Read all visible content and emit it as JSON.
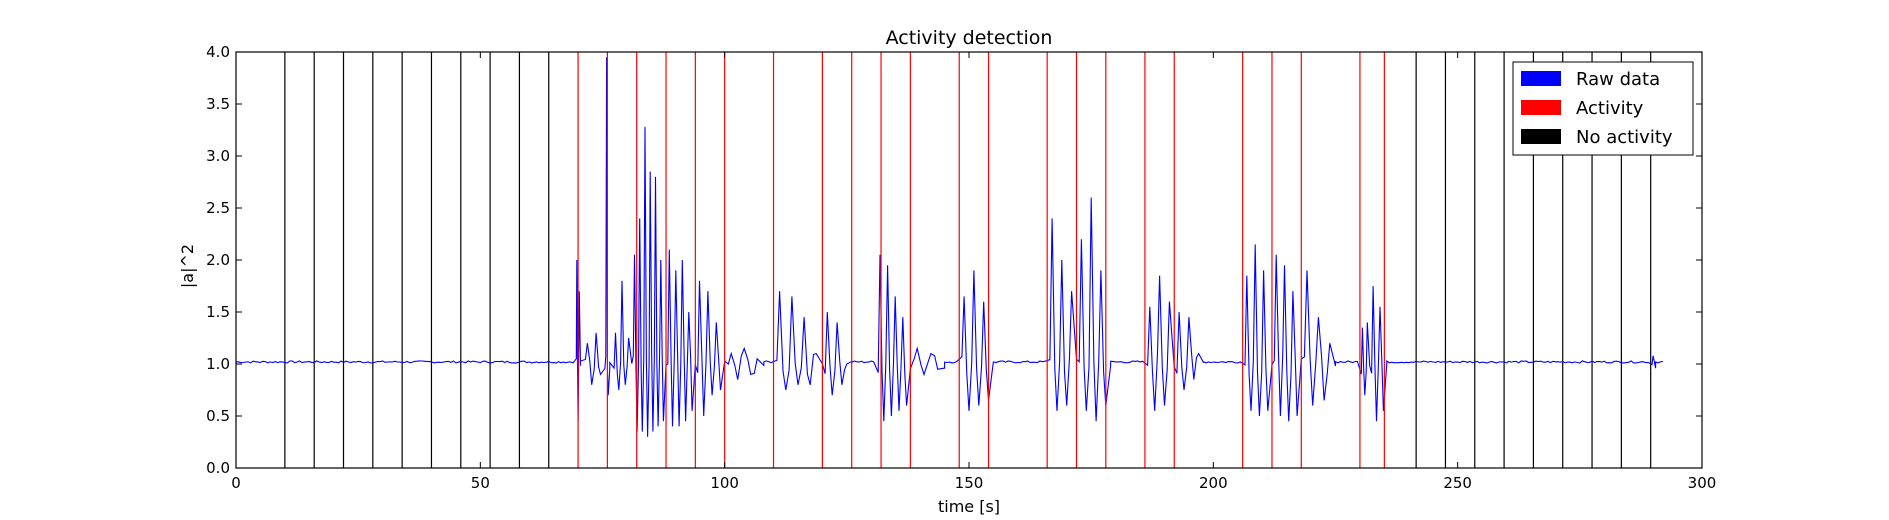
{
  "chart_data": {
    "type": "line",
    "title": "Activity detection",
    "xlabel": "time [s]",
    "ylabel": "|a|^2",
    "xlim": [
      0,
      300
    ],
    "ylim": [
      0.0,
      4.0
    ],
    "xticks": [
      0,
      50,
      100,
      150,
      200,
      250,
      300
    ],
    "xtick_labels": [
      "0",
      "50",
      "100",
      "150",
      "200",
      "250",
      "300"
    ],
    "yticks": [
      0.0,
      0.5,
      1.0,
      1.5,
      2.0,
      2.5,
      3.0,
      3.5,
      4.0
    ],
    "ytick_labels": [
      "0.0",
      "0.5",
      "1.0",
      "1.5",
      "2.0",
      "2.5",
      "3.0",
      "3.5",
      "4.0"
    ],
    "grid": false,
    "legend_position": "top-right",
    "legend": [
      {
        "label": "Raw data",
        "color": "#0000ff"
      },
      {
        "label": "Activity",
        "color": "#ff0000"
      },
      {
        "label": "No activity",
        "color": "#000000"
      }
    ],
    "raw_data": {
      "name": "Raw data",
      "color": "#0000ff",
      "baseline": 1.02,
      "t_end": 292,
      "bursts": [
        {
          "t": [
            69.5,
            70.5
          ],
          "peaks": [
            2.0,
            0.45,
            1.7
          ]
        },
        {
          "t": [
            71,
            75.5
          ],
          "peaks": [
            1.2,
            0.8,
            1.3,
            0.9
          ]
        },
        {
          "t": [
            75.5,
            76.5
          ],
          "peaks": [
            3.95,
            0.7
          ]
        },
        {
          "t": [
            77,
            81
          ],
          "peaks": [
            1.3,
            0.75,
            1.8,
            0.8,
            1.25
          ]
        },
        {
          "t": [
            81,
            88
          ],
          "peaks": [
            2.05,
            0.35,
            2.4,
            0.35,
            3.28,
            0.3,
            2.85,
            0.35,
            2.8,
            0.4,
            2.0,
            0.45
          ]
        },
        {
          "t": [
            88,
            94
          ],
          "peaks": [
            2.1,
            0.4,
            1.9,
            0.4,
            2.0,
            0.45,
            1.5,
            0.55
          ]
        },
        {
          "t": [
            94,
            100
          ],
          "peaks": [
            1.8,
            0.5,
            1.7,
            0.7,
            1.4,
            0.75
          ]
        },
        {
          "t": [
            100,
            108
          ],
          "peaks": [
            1.1,
            0.85,
            1.15,
            0.9,
            1.05
          ]
        },
        {
          "t": [
            110,
            120
          ],
          "peaks": [
            1.7,
            0.75,
            1.65,
            0.8,
            1.45,
            0.8,
            1.1
          ]
        },
        {
          "t": [
            120,
            126
          ],
          "peaks": [
            1.5,
            0.7,
            1.4,
            0.8,
            1.0
          ]
        },
        {
          "t": [
            131,
            138
          ],
          "peaks": [
            2.05,
            0.45,
            1.95,
            0.5,
            1.65,
            0.55,
            1.45,
            0.6
          ]
        },
        {
          "t": [
            138,
            145
          ],
          "peaks": [
            1.15,
            0.9,
            1.1,
            0.95
          ]
        },
        {
          "t": [
            148,
            155
          ],
          "peaks": [
            1.65,
            0.55,
            1.9,
            0.6,
            1.6,
            0.65
          ]
        },
        {
          "t": [
            166,
            172
          ],
          "peaks": [
            2.4,
            0.55,
            2.0,
            0.6,
            1.7
          ]
        },
        {
          "t": [
            172,
            179
          ],
          "peaks": [
            2.2,
            0.55,
            2.6,
            0.45,
            1.9,
            0.6
          ]
        },
        {
          "t": [
            186,
            192
          ],
          "peaks": [
            1.55,
            0.55,
            1.85,
            0.6,
            1.6
          ]
        },
        {
          "t": [
            192,
            198
          ],
          "peaks": [
            1.5,
            0.75,
            1.45,
            0.85,
            1.1
          ]
        },
        {
          "t": [
            206,
            212
          ],
          "peaks": [
            1.85,
            0.55,
            2.15,
            0.5,
            1.9,
            0.55
          ]
        },
        {
          "t": [
            212,
            218
          ],
          "peaks": [
            2.05,
            0.5,
            1.95,
            0.45,
            1.7,
            0.5
          ]
        },
        {
          "t": [
            218,
            225
          ],
          "peaks": [
            1.9,
            0.6,
            1.45,
            0.65,
            1.2
          ]
        },
        {
          "t": [
            230,
            232
          ],
          "peaks": [
            1.35,
            0.7,
            1.4
          ]
        },
        {
          "t": [
            232,
            235.5
          ],
          "peaks": [
            1.75,
            0.45,
            1.55,
            0.55
          ]
        },
        {
          "t": [
            289.5,
            290.5
          ],
          "peaks": [
            1.08
          ]
        }
      ]
    },
    "activity_lines": {
      "name": "Activity",
      "color": "#ff0000",
      "x": [
        70,
        76,
        82,
        88,
        94,
        100,
        110,
        120,
        126,
        132,
        138,
        148,
        154,
        166,
        172,
        178,
        186,
        192,
        206,
        212,
        218,
        230,
        235
      ]
    },
    "no_activity_lines": {
      "name": "No activity",
      "color": "#000000",
      "x": [
        10,
        16,
        22,
        28,
        34,
        40,
        46,
        52,
        58,
        64,
        241.5,
        247.5,
        253.5,
        259.5,
        265.5,
        271.5,
        277.5,
        283.5,
        289.5
      ]
    }
  }
}
